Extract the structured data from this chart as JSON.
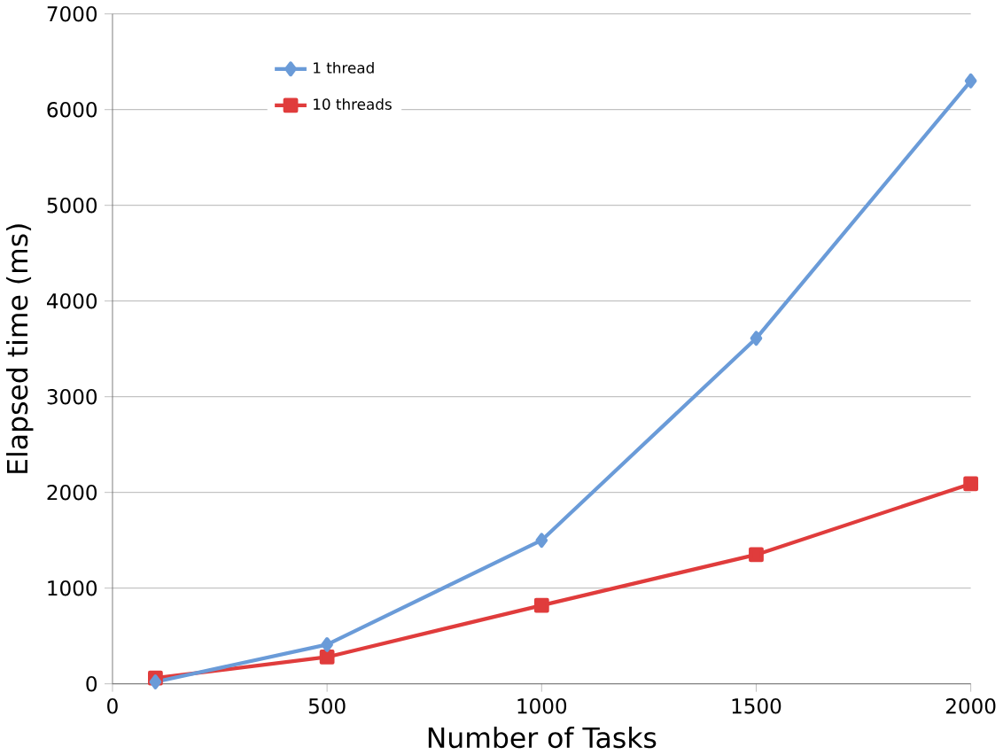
{
  "chart_data": {
    "type": "line",
    "xlabel": "Number of Tasks",
    "ylabel": "Elapsed time (ms)",
    "x": [
      100,
      500,
      1000,
      1500,
      2000
    ],
    "series": [
      {
        "name": "1 thread",
        "color": "#6a9bd8",
        "marker": "diamond",
        "values": [
          20,
          410,
          1500,
          3610,
          6300
        ]
      },
      {
        "name": "10 threads",
        "color": "#e03c3c",
        "marker": "square",
        "values": [
          60,
          280,
          820,
          1350,
          2090
        ]
      }
    ],
    "xlim": [
      0,
      2000
    ],
    "ylim": [
      0,
      7000
    ],
    "xticks": [
      0,
      500,
      1000,
      1500,
      2000
    ],
    "yticks": [
      0,
      1000,
      2000,
      3000,
      4000,
      5000,
      6000,
      7000
    ],
    "grid": "y",
    "legend": "top left",
    "line_style": "solid"
  }
}
